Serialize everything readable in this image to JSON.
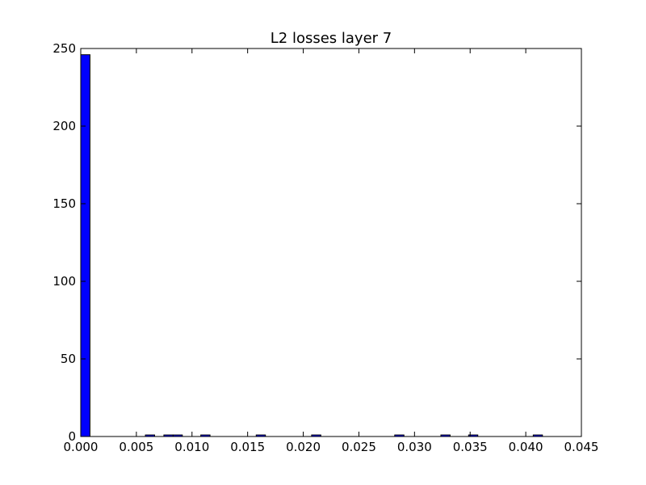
{
  "chart_data": {
    "type": "bar",
    "title": "L2 losses layer 7",
    "xlabel": "",
    "ylabel": "",
    "xlim": [
      0,
      0.045
    ],
    "ylim": [
      0,
      250
    ],
    "grid": false,
    "bar_color": "#0000ff",
    "bar_edge_color": "#000000",
    "bin_width": 0.00083,
    "xticks": [
      "0.000",
      "0.005",
      "0.010",
      "0.015",
      "0.020",
      "0.025",
      "0.030",
      "0.035",
      "0.040",
      "0.045"
    ],
    "yticks": [
      "0",
      "50",
      "100",
      "150",
      "200",
      "250"
    ],
    "bins": [
      {
        "x": 0.0,
        "value": 246
      },
      {
        "x": 0.00581,
        "value": 1
      },
      {
        "x": 0.00747,
        "value": 1
      },
      {
        "x": 0.0083,
        "value": 1
      },
      {
        "x": 0.01079,
        "value": 1
      },
      {
        "x": 0.01577,
        "value": 1
      },
      {
        "x": 0.02075,
        "value": 1
      },
      {
        "x": 0.02822,
        "value": 1
      },
      {
        "x": 0.03237,
        "value": 1
      },
      {
        "x": 0.03486,
        "value": 1
      },
      {
        "x": 0.04067,
        "value": 1
      }
    ]
  }
}
